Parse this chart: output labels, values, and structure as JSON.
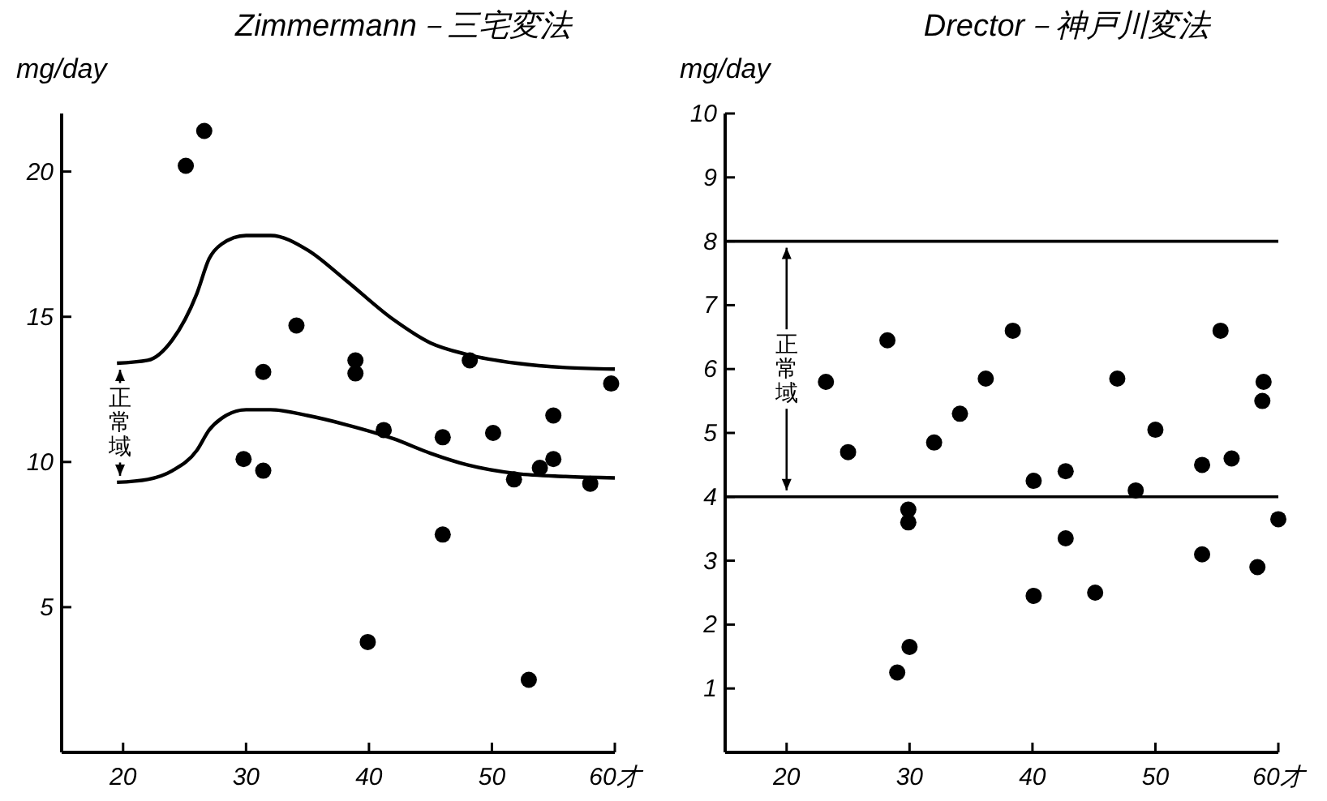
{
  "chart_data": [
    {
      "type": "scatter",
      "title": "Zimmermann－三宅変法",
      "ylabel": "mg/day",
      "marker": "circle",
      "xlim": [
        15,
        60
      ],
      "xticks": [
        20,
        30,
        40,
        50,
        {
          "value": 60,
          "label": "60才"
        }
      ],
      "ylim": [
        0,
        22
      ],
      "yticks": [
        5,
        10,
        15,
        20
      ],
      "annotations": [
        "正常域"
      ],
      "series": [
        {
          "color": "#000000",
          "x": [
            25.1,
            26.6,
            34.1,
            31.4,
            38.9,
            38.9,
            48.2,
            59.7,
            55.0,
            29.8,
            31.4,
            41.2,
            46.0,
            50.1,
            51.8,
            53.9,
            55.0,
            58.0,
            46.0,
            39.9,
            53.0
          ],
          "values": [
            20.2,
            21.4,
            14.7,
            13.1,
            13.5,
            13.05,
            13.5,
            12.7,
            11.6,
            10.1,
            9.7,
            11.1,
            10.85,
            11.0,
            9.4,
            9.8,
            10.1,
            9.25,
            7.5,
            3.8,
            2.5
          ]
        },
        {
          "type": "line",
          "color": "#000000",
          "marker": "none",
          "x": [
            19.5,
            22,
            24,
            26,
            27,
            28,
            30,
            32,
            35,
            38,
            42,
            45,
            48,
            52,
            56,
            60
          ],
          "values": [
            13.4,
            13.5,
            14.2,
            15.8,
            17.0,
            17.5,
            17.8,
            17.8,
            17.3,
            16.3,
            14.9,
            14.1,
            13.7,
            13.4,
            13.25,
            13.2
          ]
        },
        {
          "type": "line",
          "color": "#000000",
          "marker": "none",
          "x": [
            19.5,
            22,
            24,
            26,
            27,
            28,
            30,
            32,
            35,
            38,
            42,
            45,
            48,
            52,
            56,
            60
          ],
          "values": [
            9.3,
            9.4,
            9.7,
            10.4,
            11.1,
            11.5,
            11.8,
            11.8,
            11.6,
            11.3,
            10.8,
            10.3,
            9.9,
            9.6,
            9.5,
            9.45
          ]
        }
      ]
    },
    {
      "type": "scatter",
      "title": "Drector－神戸川変法",
      "ylabel": "mg/day",
      "marker": "circle",
      "xlim": [
        15,
        60
      ],
      "xticks": [
        20,
        30,
        40,
        50,
        {
          "value": 60,
          "label": "60才"
        }
      ],
      "ylim": [
        0,
        10
      ],
      "yticks": [
        1,
        2,
        3,
        4,
        5,
        6,
        7,
        8,
        9,
        10
      ],
      "annotations": [
        {
          "text": "正常域",
          "x": 20,
          "y": 8
        }
      ],
      "ref_lines": [
        {
          "axis": "y",
          "value": 8,
          "color": "#000000"
        },
        {
          "axis": "y",
          "value": 4,
          "color": "#000000"
        }
      ],
      "series": [
        {
          "color": "#000000",
          "x": [
            28.2,
            38.4,
            55.3,
            23.2,
            36.2,
            46.9,
            58.8,
            58.7,
            25.0,
            32.0,
            34.1,
            50.0,
            40.1,
            42.7,
            53.8,
            56.2,
            48.4,
            29.9,
            29.9,
            60.0,
            42.7,
            53.8,
            58.3,
            40.1,
            45.1,
            30.0,
            29.0
          ],
          "values": [
            6.45,
            6.6,
            6.6,
            5.8,
            5.85,
            5.85,
            5.8,
            5.5,
            4.7,
            4.85,
            5.3,
            5.05,
            4.25,
            4.4,
            4.5,
            4.6,
            4.1,
            3.8,
            3.6,
            3.65,
            3.35,
            3.1,
            2.9,
            2.45,
            2.5,
            1.65,
            1.25
          ]
        }
      ]
    }
  ]
}
